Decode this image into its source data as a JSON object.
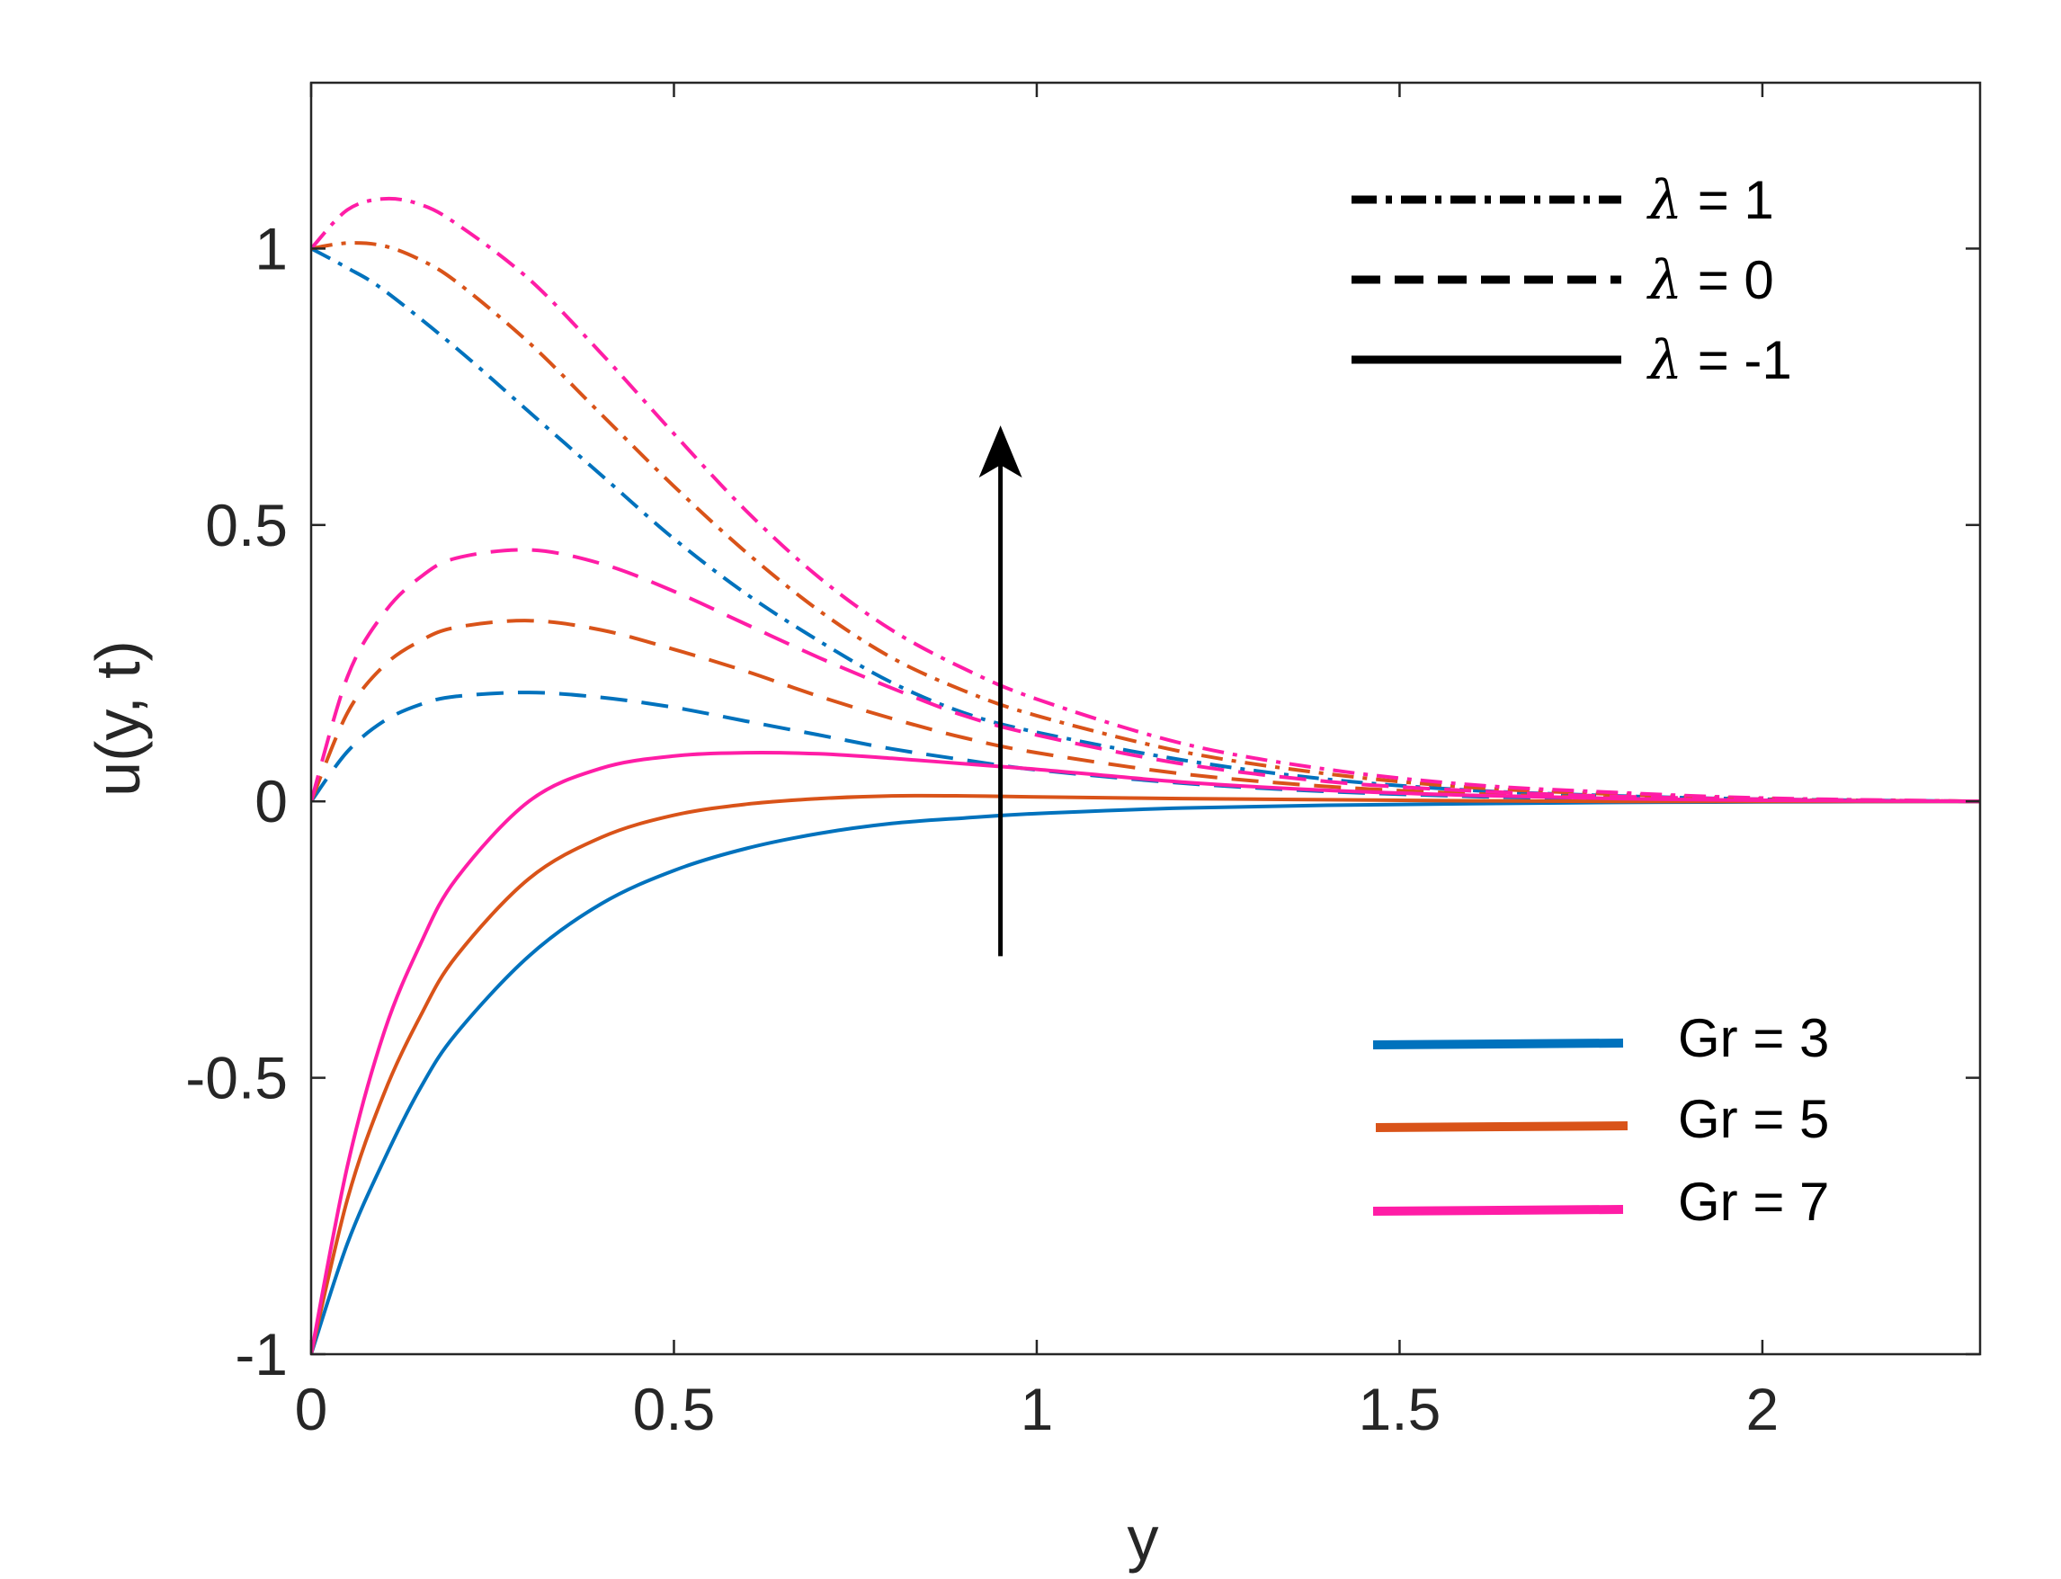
{
  "chart_data": {
    "type": "line",
    "xlabel": "y",
    "ylabel": "u(y, t)",
    "xlim": [
      0,
      2.3
    ],
    "ylim": [
      -1,
      1.3
    ],
    "x_ticks": [
      "0",
      "0.5",
      "1",
      "1.5",
      "2"
    ],
    "y_ticks": [
      "-1",
      "-0.5",
      "0",
      "0.5",
      "1"
    ],
    "x_tick_values": [
      0,
      0.5,
      1,
      1.5,
      2
    ],
    "y_tick_values": [
      -1,
      -0.5,
      0,
      0.5,
      1
    ],
    "grid": false,
    "legend_lambda": {
      "placement": "top-right",
      "entries": [
        {
          "symbol": "λ",
          "text": " = 1",
          "style": "dashdot"
        },
        {
          "symbol": "λ",
          "text": " = 0",
          "style": "dashed"
        },
        {
          "symbol": "λ",
          "text": " = -1",
          "style": "solid"
        }
      ]
    },
    "legend_gr": {
      "placement": "bottom-right",
      "entries": [
        {
          "text": "Gr = 3",
          "color": "#0072BD"
        },
        {
          "text": "Gr = 5",
          "color": "#D95319"
        },
        {
          "text": "Gr = 7",
          "color": "#FF1DA6"
        }
      ]
    },
    "arrow": {
      "x": 0.95,
      "y_from": -0.28,
      "y_to": 0.68,
      "meaning": "increasing Gr"
    },
    "series": [
      {
        "gr": 3,
        "lambda": 1,
        "style": "dashdot",
        "color": "#0072BD",
        "x": [
          0,
          0.05,
          0.1,
          0.2,
          0.3,
          0.4,
          0.5,
          0.6,
          0.7,
          0.8,
          0.9,
          1.0,
          1.2,
          1.4,
          1.6,
          1.8,
          2.0,
          2.3
        ],
        "y": [
          1.0,
          0.965,
          0.925,
          0.82,
          0.705,
          0.59,
          0.475,
          0.375,
          0.29,
          0.215,
          0.16,
          0.125,
          0.075,
          0.04,
          0.02,
          0.01,
          0.004,
          0.0
        ]
      },
      {
        "gr": 5,
        "lambda": 1,
        "style": "dashdot",
        "color": "#D95319",
        "x": [
          0,
          0.05,
          0.1,
          0.15,
          0.2,
          0.3,
          0.4,
          0.5,
          0.6,
          0.7,
          0.8,
          0.9,
          1.0,
          1.2,
          1.4,
          1.6,
          1.8,
          2.0,
          2.3
        ],
        "y": [
          1.0,
          1.01,
          1.005,
          0.98,
          0.94,
          0.83,
          0.7,
          0.57,
          0.45,
          0.345,
          0.26,
          0.2,
          0.155,
          0.09,
          0.05,
          0.025,
          0.013,
          0.005,
          0.0
        ]
      },
      {
        "gr": 7,
        "lambda": 1,
        "style": "dashdot",
        "color": "#FF1DA6",
        "x": [
          0,
          0.05,
          0.1,
          0.15,
          0.2,
          0.3,
          0.4,
          0.5,
          0.6,
          0.7,
          0.8,
          0.9,
          1.0,
          1.2,
          1.4,
          1.6,
          1.8,
          2.0,
          2.3
        ],
        "y": [
          1.0,
          1.07,
          1.09,
          1.08,
          1.045,
          0.945,
          0.81,
          0.665,
          0.525,
          0.405,
          0.31,
          0.24,
          0.185,
          0.105,
          0.058,
          0.03,
          0.016,
          0.006,
          0.0
        ]
      },
      {
        "gr": 3,
        "lambda": 0,
        "style": "dashed",
        "color": "#0072BD",
        "x": [
          0,
          0.05,
          0.1,
          0.15,
          0.2,
          0.3,
          0.4,
          0.5,
          0.6,
          0.7,
          0.8,
          0.9,
          1.0,
          1.2,
          1.4,
          1.6,
          1.8,
          2.0,
          2.3
        ],
        "y": [
          0.0,
          0.09,
          0.145,
          0.175,
          0.19,
          0.197,
          0.188,
          0.17,
          0.145,
          0.12,
          0.095,
          0.075,
          0.057,
          0.033,
          0.018,
          0.009,
          0.004,
          0.002,
          0.0
        ]
      },
      {
        "gr": 5,
        "lambda": 0,
        "style": "dashed",
        "color": "#D95319",
        "x": [
          0,
          0.05,
          0.1,
          0.15,
          0.2,
          0.3,
          0.4,
          0.5,
          0.6,
          0.7,
          0.8,
          0.9,
          1.0,
          1.2,
          1.4,
          1.6,
          1.8,
          2.0,
          2.3
        ],
        "y": [
          0.0,
          0.16,
          0.245,
          0.29,
          0.315,
          0.327,
          0.31,
          0.275,
          0.235,
          0.19,
          0.15,
          0.115,
          0.088,
          0.05,
          0.027,
          0.014,
          0.007,
          0.003,
          0.0
        ]
      },
      {
        "gr": 7,
        "lambda": 0,
        "style": "dashed",
        "color": "#FF1DA6",
        "x": [
          0,
          0.05,
          0.1,
          0.15,
          0.2,
          0.3,
          0.4,
          0.5,
          0.6,
          0.7,
          0.8,
          0.9,
          1.0,
          1.2,
          1.4,
          1.6,
          1.8,
          2.0,
          2.3
        ],
        "y": [
          0.0,
          0.225,
          0.34,
          0.405,
          0.44,
          0.455,
          0.43,
          0.38,
          0.32,
          0.26,
          0.205,
          0.155,
          0.12,
          0.068,
          0.036,
          0.019,
          0.009,
          0.004,
          0.0
        ]
      },
      {
        "gr": 3,
        "lambda": -1,
        "style": "solid",
        "color": "#0072BD",
        "x": [
          0,
          0.05,
          0.1,
          0.15,
          0.2,
          0.3,
          0.4,
          0.5,
          0.6,
          0.7,
          0.8,
          0.9,
          1.0,
          1.2,
          1.4,
          1.6,
          1.8,
          2.0,
          2.3
        ],
        "y": [
          -1.0,
          -0.8,
          -0.65,
          -0.52,
          -0.42,
          -0.28,
          -0.185,
          -0.125,
          -0.085,
          -0.058,
          -0.04,
          -0.03,
          -0.022,
          -0.012,
          -0.007,
          -0.004,
          -0.002,
          -0.001,
          0.0
        ]
      },
      {
        "gr": 5,
        "lambda": -1,
        "style": "solid",
        "color": "#D95319",
        "x": [
          0,
          0.05,
          0.1,
          0.15,
          0.2,
          0.3,
          0.4,
          0.5,
          0.6,
          0.7,
          0.8,
          0.9,
          1.0,
          1.2,
          1.4,
          1.6,
          1.8,
          2.0,
          2.3
        ],
        "y": [
          -1.0,
          -0.72,
          -0.53,
          -0.39,
          -0.28,
          -0.14,
          -0.065,
          -0.025,
          -0.005,
          0.005,
          0.01,
          0.01,
          0.008,
          0.005,
          0.003,
          0.001,
          0.0,
          0.0,
          0.0
        ]
      },
      {
        "gr": 7,
        "lambda": -1,
        "style": "solid",
        "color": "#FF1DA6",
        "x": [
          0,
          0.05,
          0.1,
          0.15,
          0.2,
          0.3,
          0.4,
          0.5,
          0.6,
          0.7,
          0.8,
          0.9,
          1.0,
          1.2,
          1.4,
          1.6,
          1.8,
          2.0,
          2.3
        ],
        "y": [
          -1.0,
          -0.66,
          -0.42,
          -0.26,
          -0.14,
          0.0,
          0.06,
          0.082,
          0.088,
          0.086,
          0.078,
          0.068,
          0.058,
          0.035,
          0.02,
          0.011,
          0.005,
          0.002,
          0.0
        ]
      }
    ]
  }
}
